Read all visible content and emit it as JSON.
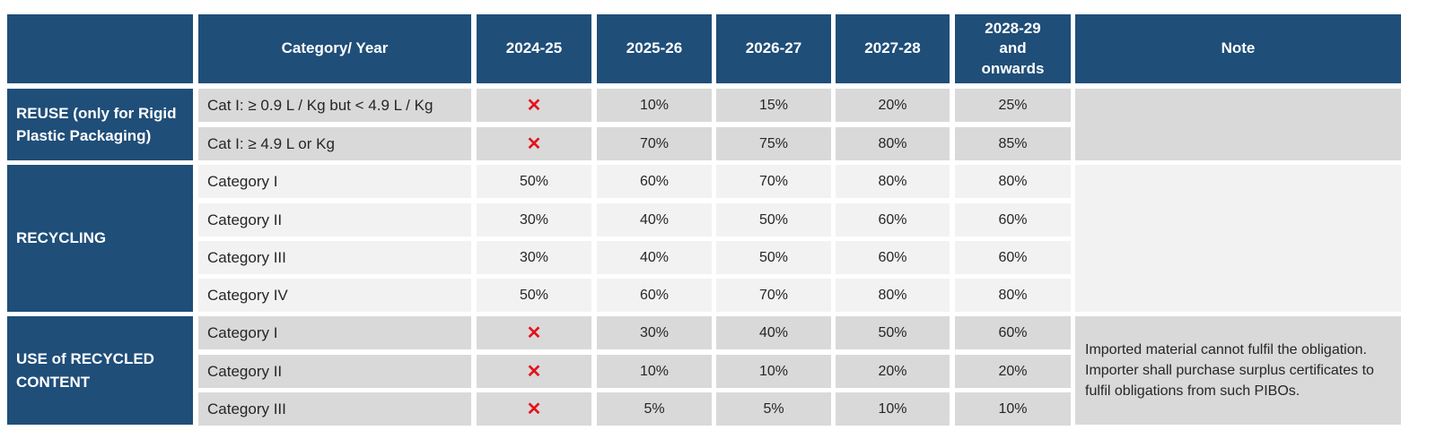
{
  "header": {
    "corner": "",
    "category_year": "Category/ Year",
    "years": [
      "2024-25",
      "2025-26",
      "2026-27",
      "2027-28",
      "2028-29 and onwards"
    ],
    "note": "Note"
  },
  "not_applicable_symbol": "✕",
  "colors": {
    "header_bg": "#1f4e79",
    "row_dark": "#d9d9d9",
    "row_light": "#f2f2f2",
    "cross": "#e2141c"
  },
  "groups": [
    {
      "label": "REUSE (only for Rigid Plastic Packaging)",
      "note": "",
      "rows": [
        {
          "category": "Cat I: ≥ 0.9 L / Kg but < 4.9 L / Kg",
          "values": [
            "✕",
            "10%",
            "15%",
            "20%",
            "25%"
          ]
        },
        {
          "category": "Cat I: ≥ 4.9 L or Kg",
          "values": [
            "✕",
            "70%",
            "75%",
            "80%",
            "85%"
          ]
        }
      ]
    },
    {
      "label": "RECYCLING",
      "note": "",
      "rows": [
        {
          "category": "Category I",
          "values": [
            "50%",
            "60%",
            "70%",
            "80%",
            "80%"
          ]
        },
        {
          "category": "Category II",
          "values": [
            "30%",
            "40%",
            "50%",
            "60%",
            "60%"
          ]
        },
        {
          "category": "Category III",
          "values": [
            "30%",
            "40%",
            "50%",
            "60%",
            "60%"
          ]
        },
        {
          "category": "Category IV",
          "values": [
            "50%",
            "60%",
            "70%",
            "80%",
            "80%"
          ]
        }
      ]
    },
    {
      "label": "USE of RECYCLED CONTENT",
      "note": "Imported material cannot fulfil the obligation. Importer shall purchase surplus certificates to fulfil obligations from such PIBOs.",
      "rows": [
        {
          "category": "Category I",
          "values": [
            "✕",
            "30%",
            "40%",
            "50%",
            "60%"
          ]
        },
        {
          "category": "Category II",
          "values": [
            "✕",
            "10%",
            "10%",
            "20%",
            "20%"
          ]
        },
        {
          "category": "Category III",
          "values": [
            "✕",
            "5%",
            "5%",
            "10%",
            "10%"
          ]
        }
      ]
    }
  ]
}
